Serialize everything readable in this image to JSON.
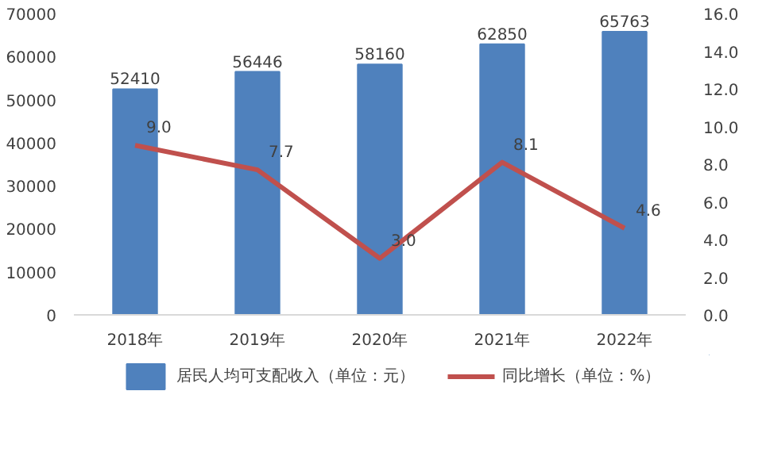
{
  "chart_data": {
    "type": "bar",
    "categories": [
      "2018年",
      "2019年",
      "2020年",
      "2021年",
      "2022年"
    ],
    "series": [
      {
        "name": "居民人均可支配收入（单位：元）",
        "color": "#4f81bd",
        "values": [
          52410,
          56446,
          58160,
          62850,
          65763
        ]
      },
      {
        "name": "同比增长（单位：%）",
        "type": "line",
        "axis": "y2",
        "color": "#c0504d",
        "values": [
          9.0,
          7.7,
          3.0,
          8.1,
          4.6
        ],
        "value_labels": [
          "9.0",
          "7.7",
          "3.0",
          "8.1",
          "4.6"
        ]
      }
    ],
    "ylim": [
      0,
      70000
    ],
    "yticks": [
      0,
      10000,
      20000,
      30000,
      40000,
      50000,
      60000,
      70000
    ],
    "y2lim": [
      0,
      16
    ],
    "y2ticks": [
      {
        "value": 0,
        "label": "0.0"
      },
      {
        "value": 2,
        "label": "2.0"
      },
      {
        "value": 4,
        "label": "4.0"
      },
      {
        "value": 6,
        "label": "6.0"
      },
      {
        "value": 8,
        "label": "8.0"
      },
      {
        "value": 10,
        "label": "10.0"
      },
      {
        "value": 12,
        "label": "12.0"
      },
      {
        "value": 14,
        "label": "14.0"
      },
      {
        "value": 16,
        "label": "16.0"
      }
    ],
    "data_labels": true,
    "legend": "bottom",
    "marker": "none"
  }
}
